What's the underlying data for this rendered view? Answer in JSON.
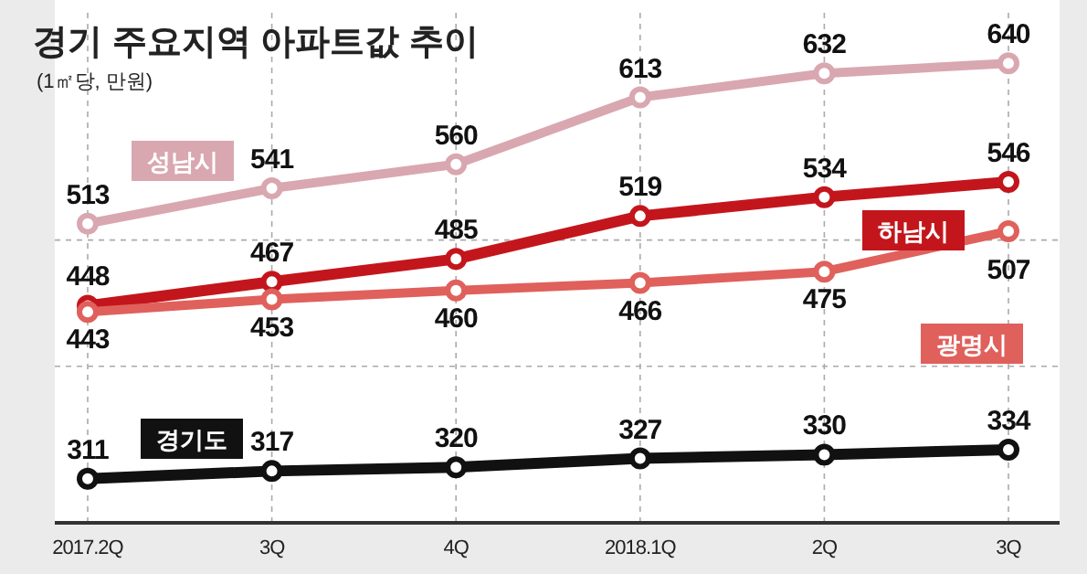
{
  "chart_data": {
    "type": "line",
    "title": "경기 주요지역 아파트값 추이",
    "subtitle": "(1㎡당, 만원)",
    "categories": [
      "2017.2Q",
      "3Q",
      "4Q",
      "2018.1Q",
      "2Q",
      "3Q"
    ],
    "series": [
      {
        "name": "성남시",
        "color": "#d9a7b0",
        "values": [
          513,
          541,
          560,
          613,
          632,
          640
        ]
      },
      {
        "name": "하남시",
        "color": "#c3161c",
        "values": [
          448,
          467,
          485,
          519,
          534,
          546
        ]
      },
      {
        "name": "광명시",
        "color": "#e0605c",
        "values": [
          443,
          453,
          460,
          466,
          475,
          507
        ]
      },
      {
        "name": "경기도",
        "color": "#111111",
        "values": [
          311,
          317,
          320,
          327,
          330,
          334
        ]
      }
    ],
    "ylim": [
      276,
      680
    ],
    "yticks": [
      {
        "value": 400,
        "label": null
      },
      {
        "value": 500,
        "label": null
      }
    ],
    "grid": true,
    "marker": "circle",
    "line_style": "solid",
    "data_labels": true
  }
}
